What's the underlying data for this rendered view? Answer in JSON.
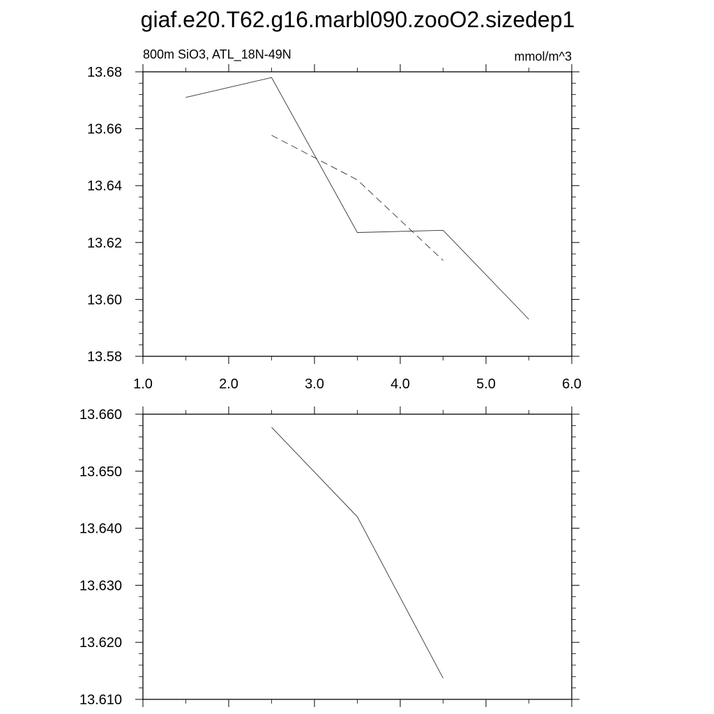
{
  "title": "giaf.e20.T62.g16.marbl090.zooO2.sizedep1",
  "chart_data": [
    {
      "type": "line",
      "left_label": "800m SiO3, ATL_18N-49N",
      "right_label": "mmol/m^3",
      "xlim": [
        1.0,
        6.0
      ],
      "ylim": [
        13.58,
        13.68
      ],
      "x_ticks": [
        1.0,
        2.0,
        3.0,
        4.0,
        5.0,
        6.0
      ],
      "x_tick_labels": [
        "1.0",
        "2.0",
        "3.0",
        "4.0",
        "5.0",
        "6.0"
      ],
      "y_ticks": [
        13.58,
        13.6,
        13.62,
        13.64,
        13.66,
        13.68
      ],
      "y_tick_labels": [
        "13.58",
        "13.60",
        "13.62",
        "13.64",
        "13.66",
        "13.68"
      ],
      "series": [
        {
          "style": "solid",
          "x": [
            1.5,
            2.5,
            3.5,
            4.5,
            5.5
          ],
          "y": [
            13.671,
            13.678,
            13.6235,
            13.6243,
            13.593
          ]
        },
        {
          "style": "dashed",
          "x": [
            2.5,
            3.5,
            4.5
          ],
          "y": [
            13.6577,
            13.642,
            13.6137
          ]
        }
      ]
    },
    {
      "type": "line",
      "xlim": [
        1.0,
        6.0
      ],
      "ylim": [
        13.61,
        13.66
      ],
      "x_ticks": [
        1.0,
        2.0,
        3.0,
        4.0,
        5.0,
        6.0
      ],
      "y_ticks": [
        13.61,
        13.62,
        13.63,
        13.64,
        13.65,
        13.66
      ],
      "y_tick_labels": [
        "13.610",
        "13.620",
        "13.630",
        "13.640",
        "13.650",
        "13.660"
      ],
      "series": [
        {
          "style": "solid",
          "x": [
            2.5,
            3.5,
            4.5
          ],
          "y": [
            13.6577,
            13.642,
            13.6137
          ]
        }
      ]
    }
  ]
}
